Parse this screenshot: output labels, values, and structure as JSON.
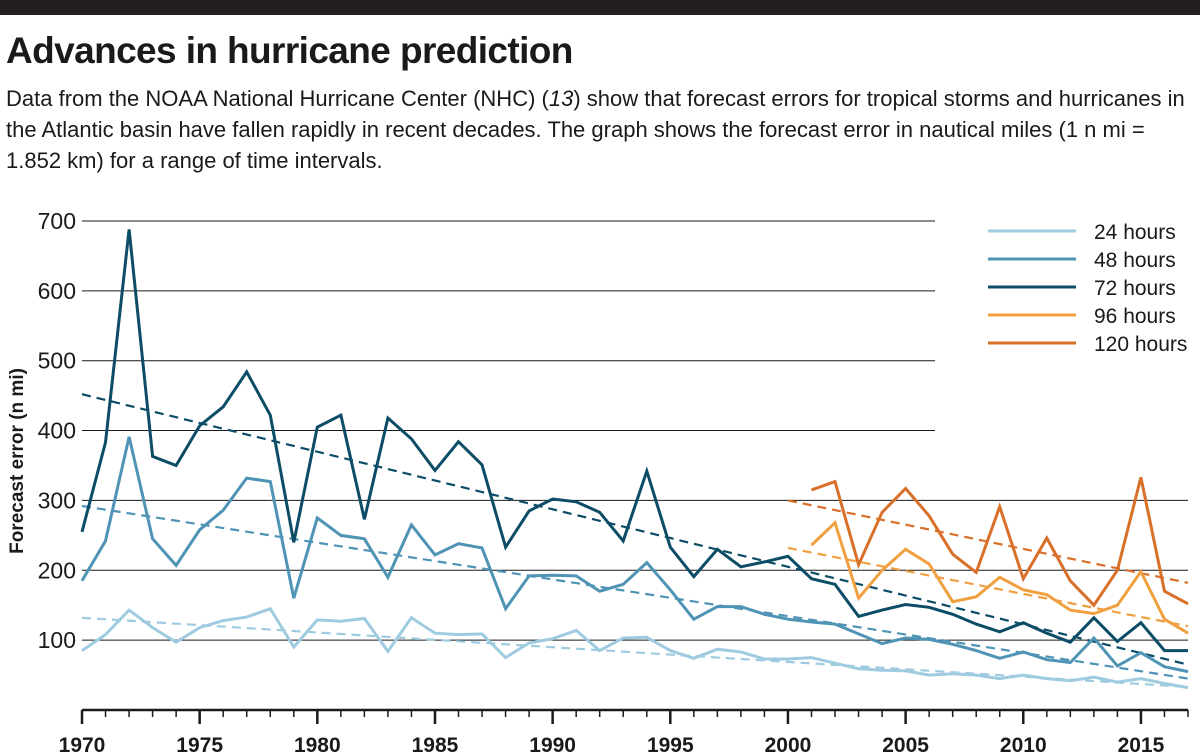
{
  "header": {
    "title": "Advances in hurricane prediction",
    "subtitle_part1": "Data from the NOAA National Hurricane Center (NHC) (",
    "subtitle_ref": "13",
    "subtitle_part2": ") show that forecast errors for  tropical storms and hurricanes in the Atlantic basin have fallen rapidly in recent decades. The graph shows the forecast error in nautical miles (1 n mi = 1.852 km) for a range of time intervals."
  },
  "colors": {
    "top_bar": "#231f20",
    "grid": "#1a1a1a",
    "24 hours": "#9fcbe0",
    "48 hours": "#4f94b5",
    "72 hours": "#0c4c66",
    "96 hours": "#f0a040",
    "120 hours": "#d9702a"
  },
  "chart_data": {
    "type": "line",
    "title": "Advances in hurricane prediction",
    "xlabel": "",
    "ylabel": "Forecast error (n mi)",
    "xlim": [
      1970,
      2017
    ],
    "ylim": [
      0,
      700
    ],
    "x_ticks": [
      1970,
      1975,
      1980,
      1985,
      1990,
      1995,
      2000,
      2005,
      2010,
      2015
    ],
    "y_ticks": [
      100,
      200,
      300,
      400,
      500,
      600,
      700
    ],
    "gridlines_y": [
      100,
      200,
      300,
      400,
      500,
      600,
      700
    ],
    "legend_position": "top-right",
    "series": [
      {
        "name": "24 hours",
        "x_start": 1970,
        "values": [
          85,
          108,
          143,
          118,
          97,
          118,
          128,
          133,
          145,
          90,
          129,
          127,
          131,
          84,
          132,
          110,
          108,
          109,
          75,
          96,
          102,
          114,
          85,
          103,
          104,
          85,
          74,
          87,
          83,
          73,
          73,
          75,
          67,
          59,
          57,
          56,
          50,
          52,
          50,
          45,
          50,
          45,
          42,
          47,
          40,
          45,
          38,
          32
        ]
      },
      {
        "name": "48 hours",
        "x_start": 1970,
        "values": [
          185,
          242,
          391,
          245,
          207,
          258,
          286,
          332,
          327,
          160,
          275,
          250,
          245,
          190,
          265,
          222,
          238,
          232,
          145,
          192,
          193,
          192,
          170,
          180,
          211,
          172,
          130,
          148,
          148,
          137,
          130,
          126,
          123,
          109,
          95,
          103,
          101,
          94,
          85,
          74,
          83,
          72,
          68,
          103,
          63,
          82,
          62,
          55
        ]
      },
      {
        "name": "72 hours",
        "x_start": 1970,
        "values": [
          255,
          383,
          688,
          363,
          350,
          407,
          434,
          484,
          422,
          240,
          405,
          422,
          273,
          418,
          388,
          343,
          384,
          351,
          233,
          285,
          302,
          298,
          283,
          242,
          342,
          233,
          191,
          230,
          205,
          212,
          220,
          188,
          180,
          134,
          143,
          151,
          147,
          137,
          123,
          112,
          125,
          110,
          97,
          132,
          98,
          125,
          85,
          85
        ]
      },
      {
        "name": "96 hours",
        "x_start": 2001,
        "values": [
          236,
          268,
          160,
          200,
          230,
          209,
          155,
          162,
          190,
          172,
          165,
          143,
          138,
          150,
          198,
          130,
          110
        ]
      },
      {
        "name": "120 hours",
        "x_start": 2001,
        "values": [
          315,
          327,
          208,
          283,
          317,
          278,
          223,
          197,
          291,
          188,
          246,
          185,
          150,
          200,
          333,
          170,
          152
        ]
      }
    ],
    "trendlines": [
      {
        "series": "24 hours",
        "x": [
          1970,
          2017
        ],
        "y": [
          132,
          33
        ]
      },
      {
        "series": "48 hours",
        "x": [
          1970,
          2017
        ],
        "y": [
          292,
          45
        ]
      },
      {
        "series": "72 hours",
        "x": [
          1970,
          2017
        ],
        "y": [
          452,
          65
        ]
      },
      {
        "series": "96 hours",
        "x": [
          2000,
          2017
        ],
        "y": [
          232,
          120
        ]
      },
      {
        "series": "120 hours",
        "x": [
          2000,
          2017
        ],
        "y": [
          300,
          182
        ]
      }
    ]
  }
}
